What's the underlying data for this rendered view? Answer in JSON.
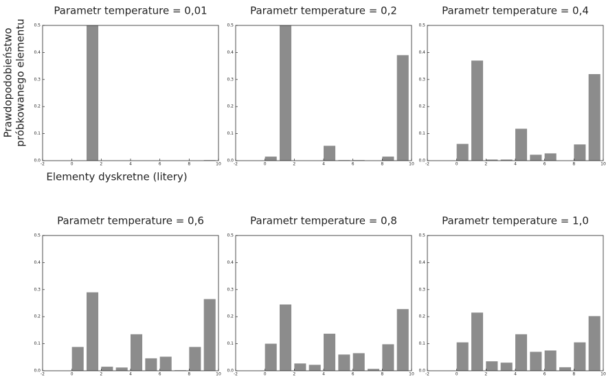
{
  "chart_data": [
    {
      "type": "bar",
      "title": "Parametr temperature = 0,01",
      "ylabel": [
        "Prawdopodobieństwo",
        "próbkowanego elementu"
      ],
      "xlabel": "Elementy dyskretne (litery)",
      "x": [
        0,
        1,
        2,
        3,
        4,
        5,
        6,
        7,
        8,
        9
      ],
      "values": [
        0,
        0.5,
        0,
        0,
        0,
        0,
        0,
        0,
        0,
        0.002
      ],
      "color": "#8c8c8c",
      "xlim": [
        -2,
        10
      ],
      "xticks": [
        -2,
        0,
        2,
        4,
        6,
        8,
        10
      ],
      "ylim": [
        0,
        0.5
      ],
      "yticks": [
        {
          "value": 0,
          "label": "0.0"
        },
        0.1,
        0.2,
        0.3,
        0.4,
        0.5
      ]
    },
    {
      "type": "bar",
      "title": "Parametr temperature = 0,2",
      "x": [
        0,
        1,
        2,
        3,
        4,
        5,
        6,
        7,
        8,
        9
      ],
      "values": [
        0.015,
        0.5,
        0,
        0,
        0.055,
        0.002,
        0.002,
        0,
        0.015,
        0.39
      ],
      "color": "#8c8c8c",
      "xlim": [
        -2,
        10
      ],
      "xticks": [
        -2,
        0,
        2,
        4,
        6,
        8,
        10
      ],
      "ylim": [
        0,
        0.5
      ],
      "yticks": [
        {
          "value": 0,
          "label": "0.0"
        },
        0.1,
        0.2,
        0.3,
        0.4,
        0.5
      ]
    },
    {
      "type": "bar",
      "title": "Parametr temperature = 0,4",
      "x": [
        0,
        1,
        2,
        3,
        4,
        5,
        6,
        7,
        8,
        9
      ],
      "values": [
        0.062,
        0.37,
        0.004,
        0.004,
        0.118,
        0.022,
        0.027,
        0,
        0.06,
        0.32
      ],
      "color": "#8c8c8c",
      "xlim": [
        -2,
        10
      ],
      "xticks": [
        -2,
        0,
        2,
        4,
        6,
        8,
        10
      ],
      "ylim": [
        0,
        0.5
      ],
      "yticks": [
        {
          "value": 0,
          "label": "0.0"
        },
        0.1,
        0.2,
        0.3,
        0.4,
        0.5
      ]
    },
    {
      "type": "bar",
      "title": "Parametr temperature = 0,6",
      "x": [
        0,
        1,
        2,
        3,
        4,
        5,
        6,
        7,
        8,
        9
      ],
      "values": [
        0.088,
        0.29,
        0.015,
        0.012,
        0.135,
        0.046,
        0.052,
        0.002,
        0.088,
        0.265
      ],
      "color": "#8c8c8c",
      "xlim": [
        -2,
        10
      ],
      "xticks": [
        -2,
        0,
        2,
        4,
        6,
        8,
        10
      ],
      "ylim": [
        0,
        0.5
      ],
      "yticks": [
        {
          "value": 0,
          "label": "0.0"
        },
        0.1,
        0.2,
        0.3,
        0.4,
        0.5
      ]
    },
    {
      "type": "bar",
      "title": "Parametr temperature = 0,8",
      "x": [
        0,
        1,
        2,
        3,
        4,
        5,
        6,
        7,
        8,
        9
      ],
      "values": [
        0.1,
        0.245,
        0.027,
        0.022,
        0.137,
        0.06,
        0.065,
        0.007,
        0.098,
        0.228
      ],
      "color": "#8c8c8c",
      "xlim": [
        -2,
        10
      ],
      "xticks": [
        -2,
        0,
        2,
        4,
        6,
        8,
        10
      ],
      "ylim": [
        0,
        0.5
      ],
      "yticks": [
        {
          "value": 0,
          "label": "0.0"
        },
        0.1,
        0.2,
        0.3,
        0.4,
        0.5
      ]
    },
    {
      "type": "bar",
      "title": "Parametr temperature = 1,0",
      "x": [
        0,
        1,
        2,
        3,
        4,
        5,
        6,
        7,
        8,
        9
      ],
      "values": [
        0.105,
        0.215,
        0.035,
        0.03,
        0.135,
        0.07,
        0.075,
        0.013,
        0.105,
        0.202
      ],
      "color": "#8c8c8c",
      "xlim": [
        -2,
        10
      ],
      "xticks": [
        -2,
        0,
        2,
        4,
        6,
        8,
        10
      ],
      "ylim": [
        0,
        0.5
      ],
      "yticks": [
        {
          "value": 0,
          "label": "0.0"
        },
        0.1,
        0.2,
        0.3,
        0.4,
        0.5
      ]
    }
  ]
}
